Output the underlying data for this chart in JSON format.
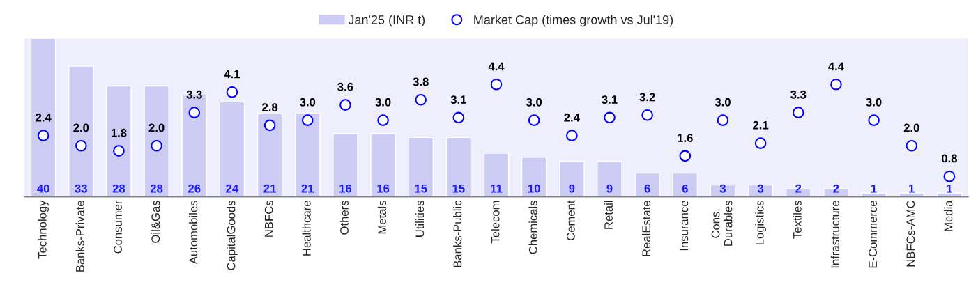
{
  "chart_data": {
    "type": "bar",
    "categories": [
      "Technology",
      "Banks-Private",
      "Consumer",
      "Oil&Gas",
      "Automobiles",
      "CapitalGoods",
      "NBFCs",
      "Healthcare",
      "Others",
      "Metals",
      "Utilities",
      "Banks-Public",
      "Telecom",
      "Chemicals",
      "Cement",
      "Retail",
      "RealEstate",
      "Insurance",
      "Cons.\nDurables",
      "Logistics",
      "Textiles",
      "Infrastructure",
      "E-Commerce",
      "NBFCs-AMC",
      "Media"
    ],
    "series": [
      {
        "name": "Jan'25 (INR t)",
        "color": "#ccccf5",
        "values": [
          40,
          33,
          28,
          28,
          26,
          24,
          21,
          21,
          16,
          16,
          15,
          15,
          11,
          10,
          9,
          9,
          6,
          6,
          3,
          3,
          2,
          2,
          1,
          1,
          1
        ]
      },
      {
        "name": "Market Cap (times growth vs Jul'19)",
        "type": "scatter",
        "axis": "y2",
        "color": "#0000ff",
        "values": [
          2.4,
          2.0,
          1.8,
          2.0,
          3.3,
          4.1,
          2.8,
          3.0,
          3.6,
          3.0,
          3.8,
          3.1,
          4.4,
          3.0,
          2.4,
          3.1,
          3.2,
          1.6,
          3.0,
          2.1,
          3.3,
          4.4,
          3.0,
          2.0,
          0.8
        ],
        "value_labels": [
          "2.4",
          "2.0",
          "1.8",
          "2.0",
          "3.3",
          "4.1",
          "2.8",
          "3.0",
          "3.6",
          "3.0",
          "3.8",
          "3.1",
          "4.4",
          "3.0",
          "2.4",
          "3.1",
          "3.2",
          "1.6",
          "3.0",
          "2.1",
          "3.3",
          "4.4",
          "3.0",
          "2.0",
          "0.8"
        ]
      }
    ],
    "ylim": [
      0,
      40
    ],
    "y2lim": [
      0,
      6.2
    ],
    "tick_labels": "x",
    "data_labels": true,
    "legend": "top",
    "grid": false,
    "marker": "circle"
  }
}
